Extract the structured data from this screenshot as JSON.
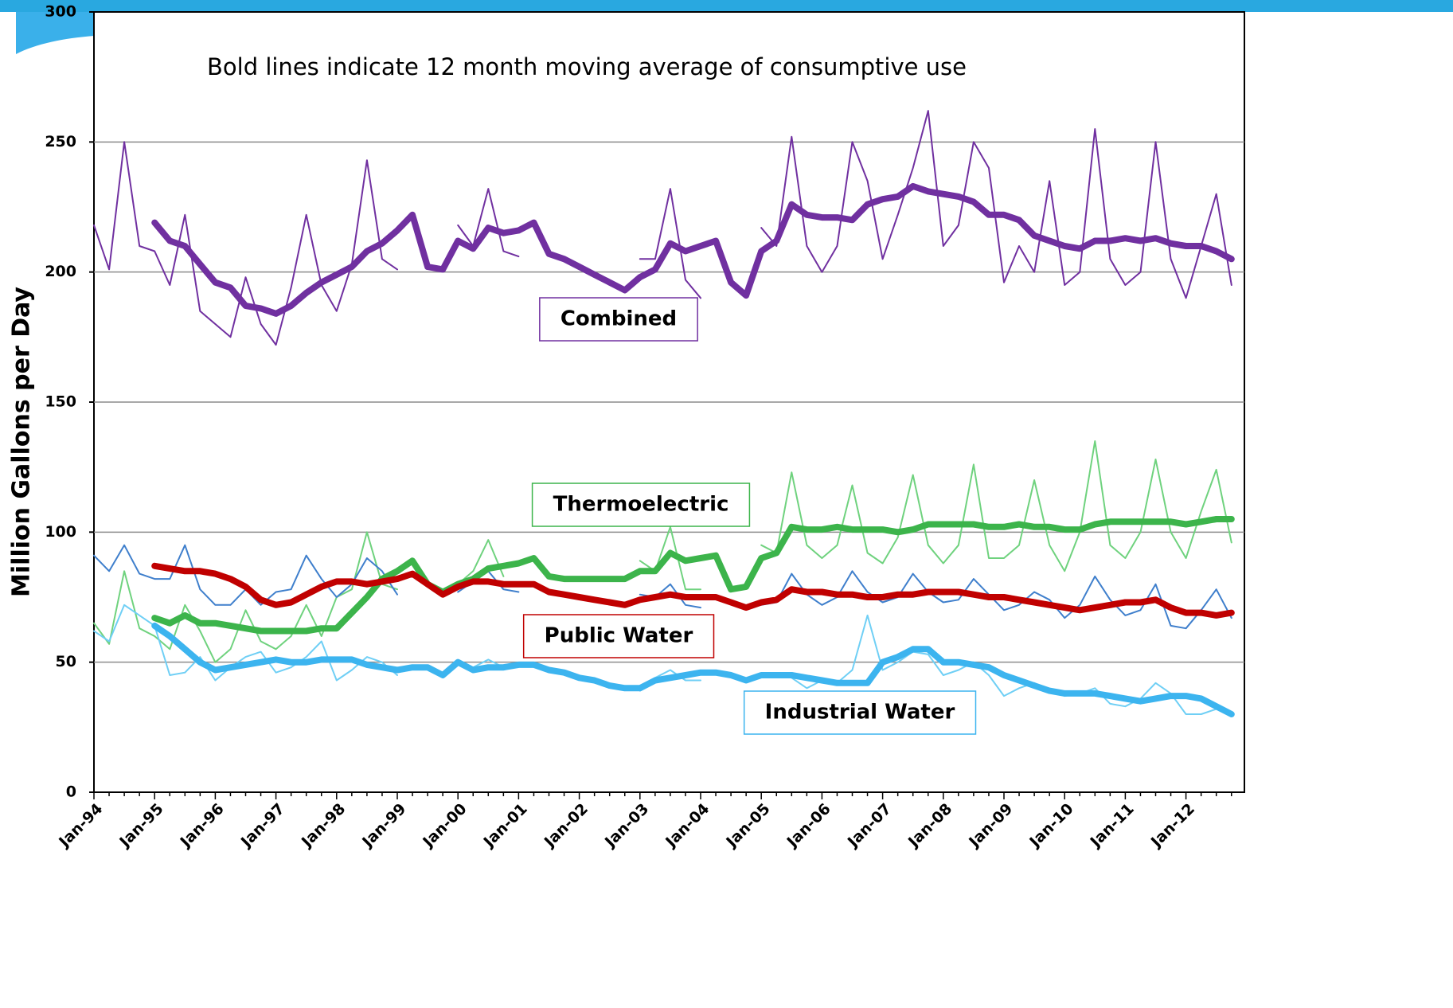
{
  "chart_data": {
    "type": "line",
    "annotation": "Bold lines indicate 12 month moving average of consumptive use",
    "y_label": "Million Gallons per Day",
    "ylim": [
      0,
      300
    ],
    "yticks": [
      0,
      50,
      100,
      150,
      200,
      250,
      300
    ],
    "grid": true,
    "categories": [
      "Jan-94",
      null,
      null,
      null,
      "Jan-95",
      null,
      null,
      null,
      "Jan-96",
      null,
      null,
      null,
      "Jan-97",
      null,
      null,
      null,
      "Jan-98",
      null,
      null,
      null,
      "Jan-99",
      null,
      null,
      null,
      "Jan-00",
      null,
      null,
      null,
      "Jan-01",
      null,
      null,
      null,
      "Jan-02",
      null,
      null,
      null,
      "Jan-03",
      null,
      null,
      null,
      "Jan-04",
      null,
      null,
      null,
      "Jan-05",
      null,
      null,
      null,
      "Jan-06",
      null,
      null,
      null,
      "Jan-07",
      null,
      null,
      null,
      "Jan-08",
      null,
      null,
      null,
      "Jan-09",
      null,
      null,
      null,
      "Jan-10",
      null,
      null,
      null,
      "Jan-11",
      null,
      null,
      null,
      "Jan-12",
      null,
      null,
      null
    ],
    "series": [
      {
        "name": "Combined",
        "color": "#7030a0",
        "values": [
          218,
          201,
          250,
          210,
          208,
          195,
          222,
          185,
          180,
          175,
          198,
          180,
          172,
          194,
          222,
          195,
          185,
          203,
          243,
          205,
          201,
          null,
          null,
          null,
          218,
          210,
          232,
          208,
          206,
          null,
          null,
          null,
          null,
          null,
          null,
          null,
          205,
          205,
          232,
          197,
          190,
          null,
          null,
          null,
          217,
          210,
          252,
          210,
          200,
          210,
          250,
          235,
          205,
          222,
          240,
          262,
          210,
          218,
          250,
          240,
          196,
          210,
          200,
          235,
          195,
          200,
          255,
          205,
          195,
          200,
          250,
          205,
          190,
          210,
          230,
          195
        ],
        "moving_average": {
          "color": "#7030a0",
          "values": [
            null,
            null,
            null,
            null,
            219,
            212,
            210,
            203,
            196,
            194,
            187,
            186,
            184,
            187,
            192,
            196,
            199,
            202,
            208,
            211,
            216,
            222,
            202,
            201,
            212,
            209,
            217,
            215,
            216,
            219,
            207,
            205,
            202,
            199,
            196,
            193,
            198,
            201,
            211,
            208,
            210,
            212,
            196,
            191,
            208,
            212,
            226,
            222,
            221,
            221,
            220,
            226,
            228,
            229,
            233,
            231,
            230,
            229,
            227,
            222,
            222,
            220,
            214,
            212,
            210,
            209,
            212,
            212,
            213,
            212,
            213,
            211,
            210,
            210,
            208,
            205
          ]
        }
      },
      {
        "name": "Thermoelectric",
        "color": "#6fd27e",
        "values": [
          65,
          57,
          85,
          63,
          60,
          55,
          72,
          62,
          50,
          55,
          70,
          58,
          55,
          60,
          72,
          60,
          75,
          78,
          100,
          80,
          78,
          null,
          null,
          null,
          80,
          85,
          97,
          83,
          null,
          null,
          null,
          null,
          null,
          null,
          null,
          null,
          89,
          85,
          102,
          78,
          78,
          null,
          null,
          null,
          95,
          92,
          123,
          95,
          90,
          95,
          118,
          92,
          88,
          98,
          122,
          95,
          88,
          95,
          126,
          90,
          90,
          95,
          120,
          95,
          85,
          100,
          135,
          95,
          90,
          100,
          128,
          100,
          90,
          108,
          124,
          96
        ],
        "moving_average": {
          "color": "#3cb44b",
          "values": [
            null,
            null,
            null,
            null,
            67,
            65,
            68,
            65,
            65,
            64,
            63,
            62,
            62,
            62,
            62,
            63,
            63,
            69,
            75,
            82,
            85,
            89,
            80,
            77,
            80,
            82,
            86,
            87,
            88,
            90,
            83,
            82,
            82,
            82,
            82,
            82,
            85,
            85,
            92,
            89,
            90,
            91,
            78,
            79,
            90,
            92,
            102,
            101,
            101,
            102,
            101,
            101,
            101,
            100,
            101,
            103,
            103,
            103,
            103,
            102,
            102,
            103,
            102,
            102,
            101,
            101,
            103,
            104,
            104,
            104,
            104,
            104,
            103,
            104,
            105,
            105
          ]
        }
      },
      {
        "name": "Public Water",
        "color": "#3f7fcc",
        "values": [
          91,
          85,
          95,
          84,
          82,
          82,
          95,
          78,
          72,
          72,
          78,
          72,
          77,
          78,
          91,
          82,
          75,
          80,
          90,
          85,
          76,
          null,
          null,
          null,
          77,
          81,
          85,
          78,
          77,
          null,
          null,
          null,
          null,
          null,
          null,
          null,
          76,
          75,
          80,
          72,
          71,
          null,
          null,
          null,
          72,
          73,
          84,
          76,
          72,
          75,
          85,
          77,
          73,
          75,
          84,
          77,
          73,
          74,
          82,
          76,
          70,
          72,
          77,
          74,
          67,
          72,
          83,
          74,
          68,
          70,
          80,
          64,
          63,
          70,
          78,
          67
        ],
        "moving_average": {
          "color": "#c00000",
          "values": [
            null,
            null,
            null,
            null,
            87,
            86,
            85,
            85,
            84,
            82,
            79,
            74,
            72,
            73,
            76,
            79,
            81,
            81,
            80,
            81,
            82,
            84,
            80,
            76,
            79,
            81,
            81,
            80,
            80,
            80,
            77,
            76,
            75,
            74,
            73,
            72,
            74,
            75,
            76,
            75,
            75,
            75,
            73,
            71,
            73,
            74,
            78,
            77,
            77,
            76,
            76,
            75,
            75,
            76,
            76,
            77,
            77,
            77,
            76,
            75,
            75,
            74,
            73,
            72,
            71,
            70,
            71,
            72,
            73,
            73,
            74,
            71,
            69,
            69,
            68,
            69
          ]
        }
      },
      {
        "name": "Industrial Water",
        "color": "#6fcff5",
        "values": [
          62,
          58,
          72,
          68,
          64,
          45,
          46,
          52,
          43,
          48,
          52,
          54,
          46,
          48,
          52,
          58,
          43,
          47,
          52,
          50,
          45,
          null,
          null,
          null,
          49,
          48,
          51,
          48,
          49,
          null,
          null,
          null,
          null,
          null,
          null,
          null,
          39,
          44,
          47,
          43,
          43,
          null,
          null,
          null,
          45,
          45,
          44,
          40,
          43,
          42,
          47,
          68,
          47,
          50,
          54,
          53,
          45,
          47,
          50,
          45,
          37,
          40,
          42,
          39,
          37,
          38,
          40,
          34,
          33,
          36,
          42,
          38,
          30,
          30,
          32,
          31
        ],
        "moving_average": {
          "color": "#3cb4ef",
          "values": [
            null,
            null,
            null,
            null,
            64,
            60,
            55,
            50,
            47,
            48,
            49,
            50,
            51,
            50,
            50,
            51,
            51,
            51,
            49,
            48,
            47,
            48,
            48,
            45,
            50,
            47,
            48,
            48,
            49,
            49,
            47,
            46,
            44,
            43,
            41,
            40,
            40,
            43,
            44,
            45,
            46,
            46,
            45,
            43,
            45,
            45,
            45,
            44,
            43,
            42,
            42,
            42,
            50,
            52,
            55,
            55,
            50,
            50,
            49,
            48,
            45,
            43,
            41,
            39,
            38,
            38,
            38,
            37,
            36,
            35,
            36,
            37,
            37,
            36,
            33,
            30
          ]
        }
      }
    ]
  }
}
